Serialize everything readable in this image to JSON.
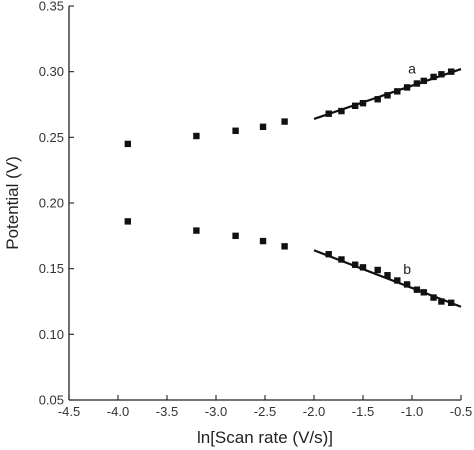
{
  "chart_data": {
    "type": "scatter",
    "title": "",
    "xlabel": "ln[Scan rate (V/s)]",
    "ylabel": "Potential (V)",
    "xlim": [
      -4.5,
      -0.5
    ],
    "ylim": [
      0.05,
      0.35
    ],
    "x_ticks": [
      -4.5,
      -4.0,
      -3.5,
      -3.0,
      -2.5,
      -2.0,
      -1.5,
      -1.0,
      -0.5
    ],
    "x_tick_labels": [
      "-4.5",
      "-4.0",
      "-3.5",
      "-3.0",
      "-2.5",
      "-2.0",
      "-1.5",
      "-1.0",
      "-0.5"
    ],
    "y_ticks": [
      0.05,
      0.1,
      0.15,
      0.2,
      0.25,
      0.3,
      0.35
    ],
    "y_tick_labels": [
      "0.05",
      "0.10",
      "0.15",
      "0.20",
      "0.25",
      "0.30",
      "0.35"
    ],
    "grid": false,
    "legend": "none",
    "series": [
      {
        "name": "a",
        "x": [
          -3.9,
          -3.2,
          -2.8,
          -2.52,
          -2.3,
          -1.85,
          -1.72,
          -1.58,
          -1.5,
          -1.35,
          -1.25,
          -1.15,
          -1.05,
          -0.95,
          -0.88,
          -0.78,
          -0.7,
          -0.6
        ],
        "y": [
          0.245,
          0.251,
          0.255,
          0.258,
          0.262,
          0.268,
          0.27,
          0.274,
          0.276,
          0.279,
          0.282,
          0.285,
          0.288,
          0.291,
          0.293,
          0.296,
          0.298,
          0.3
        ],
        "fit": {
          "x": [
            -2.0,
            -0.5
          ],
          "y": [
            0.264,
            0.302
          ]
        }
      },
      {
        "name": "b",
        "x": [
          -3.9,
          -3.2,
          -2.8,
          -2.52,
          -2.3,
          -1.85,
          -1.72,
          -1.58,
          -1.5,
          -1.35,
          -1.25,
          -1.15,
          -1.05,
          -0.95,
          -0.88,
          -0.78,
          -0.7,
          -0.6
        ],
        "y": [
          0.186,
          0.179,
          0.175,
          0.171,
          0.167,
          0.161,
          0.157,
          0.153,
          0.151,
          0.149,
          0.145,
          0.141,
          0.138,
          0.134,
          0.132,
          0.128,
          0.125,
          0.124
        ],
        "fit": {
          "x": [
            -2.0,
            -0.5
          ],
          "y": [
            0.164,
            0.121
          ]
        }
      }
    ]
  }
}
